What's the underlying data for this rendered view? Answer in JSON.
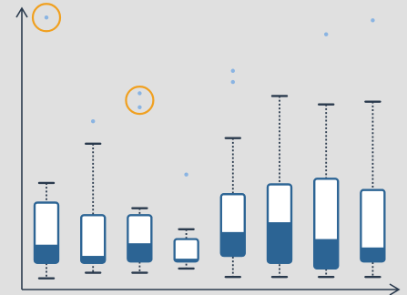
{
  "colors": {
    "background": "#e0e0e0",
    "axis": "#2a3a4d",
    "box_fill": "#ffffff",
    "box_lower": "#2c6494",
    "box_border": "#2c6494",
    "outlier": "#8ab4e2",
    "highlight": "#f0a020"
  },
  "chart_data": {
    "type": "box",
    "title": "",
    "xlabel": "",
    "ylabel": "",
    "ylim": [
      0,
      100
    ],
    "grid": false,
    "legend": "none",
    "boxes": [
      {
        "whisker_low": 4,
        "q1": 9.5,
        "median": 16,
        "q3": 31,
        "whisker_high": 38,
        "outliers": [
          97
        ]
      },
      {
        "whisker_low": 6,
        "q1": 9.5,
        "median": 12,
        "q3": 26.5,
        "whisker_high": 52,
        "outliers": [
          60
        ]
      },
      {
        "whisker_low": 6,
        "q1": 10,
        "median": 16.5,
        "q3": 26.5,
        "whisker_high": 29,
        "outliers": [
          65,
          70
        ]
      },
      {
        "whisker_low": 7.5,
        "q1": 10,
        "median": 11,
        "q3": 18,
        "whisker_high": 21.5,
        "outliers": [
          41
        ]
      },
      {
        "whisker_low": 4.5,
        "q1": 12,
        "median": 20.5,
        "q3": 34,
        "whisker_high": 54,
        "outliers": [
          74,
          78
        ]
      },
      {
        "whisker_low": 4.5,
        "q1": 9.5,
        "median": 24,
        "q3": 37.5,
        "whisker_high": 69,
        "outliers": []
      },
      {
        "whisker_low": 4.5,
        "q1": 7.5,
        "median": 18,
        "q3": 39.5,
        "whisker_high": 66,
        "outliers": [
          91
        ]
      },
      {
        "whisker_low": 4.5,
        "q1": 10,
        "median": 15,
        "q3": 35.5,
        "whisker_high": 67,
        "outliers": [
          96
        ]
      }
    ],
    "highlighted_outliers": [
      {
        "box": 0,
        "outlier": 0
      },
      {
        "box": 2,
        "outlier": 0
      }
    ]
  }
}
